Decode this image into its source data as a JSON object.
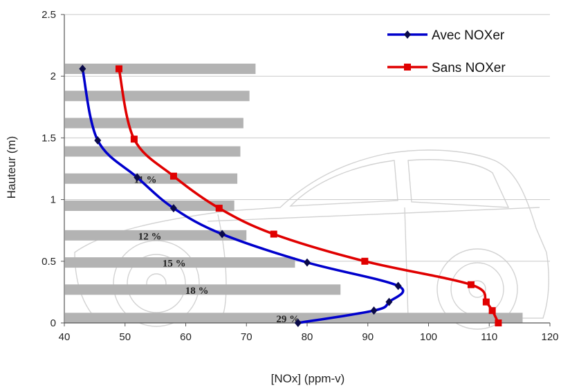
{
  "chart_data": {
    "type": "line",
    "xlabel": "[NOx] (ppm-v)",
    "ylabel": "Hauteur (m)",
    "xlim": [
      40,
      120
    ],
    "ylim": [
      0,
      2.5
    ],
    "xticks": [
      "40",
      "50",
      "60",
      "70",
      "80",
      "90",
      "100",
      "110",
      "120"
    ],
    "yticks": [
      "0",
      "0.5",
      "1",
      "1.5",
      "2",
      "2.5"
    ],
    "grid": "horizontal",
    "legend_position": "top-right",
    "series": [
      {
        "name": "Avec NOXer",
        "color": "#0000cc",
        "marker": "diamond",
        "points": [
          {
            "x": 43,
            "y": 2.06
          },
          {
            "x": 45.5,
            "y": 1.48
          },
          {
            "x": 52,
            "y": 1.18
          },
          {
            "x": 58,
            "y": 0.93
          },
          {
            "x": 66,
            "y": 0.72
          },
          {
            "x": 80,
            "y": 0.49
          },
          {
            "x": 95,
            "y": 0.3
          },
          {
            "x": 93.5,
            "y": 0.17
          },
          {
            "x": 91,
            "y": 0.1
          },
          {
            "x": 78.5,
            "y": 0.0
          }
        ]
      },
      {
        "name": "Sans NOXer",
        "color": "#e00000",
        "marker": "square",
        "points": [
          {
            "x": 49,
            "y": 2.06
          },
          {
            "x": 51.5,
            "y": 1.49
          },
          {
            "x": 58,
            "y": 1.19
          },
          {
            "x": 65.5,
            "y": 0.93
          },
          {
            "x": 74.5,
            "y": 0.72
          },
          {
            "x": 89.5,
            "y": 0.5
          },
          {
            "x": 107,
            "y": 0.31
          },
          {
            "x": 109.5,
            "y": 0.17
          },
          {
            "x": 110.5,
            "y": 0.1
          },
          {
            "x": 111.5,
            "y": 0.0
          }
        ]
      }
    ],
    "reduction_bars": [
      {
        "y": 2.06,
        "x_end": 71.5,
        "label": ""
      },
      {
        "y": 1.84,
        "x_end": 70.5,
        "label": ""
      },
      {
        "y": 1.62,
        "x_end": 69.5,
        "label": ""
      },
      {
        "y": 1.39,
        "x_end": 69,
        "label": ""
      },
      {
        "y": 1.17,
        "x_end": 68.5,
        "label": "11 %"
      },
      {
        "y": 0.95,
        "x_end": 68,
        "label": ""
      },
      {
        "y": 0.71,
        "x_end": 70,
        "label": "12 %"
      },
      {
        "y": 0.49,
        "x_end": 78,
        "label": "15 %"
      },
      {
        "y": 0.27,
        "x_end": 85.5,
        "label": "18 %"
      },
      {
        "y": 0.04,
        "x_end": 115.5,
        "label": "29 %"
      }
    ],
    "bar_color": "#b3b3b3"
  }
}
